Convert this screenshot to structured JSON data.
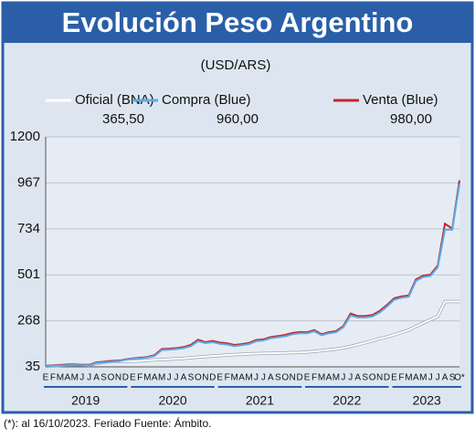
{
  "chart_data": {
    "type": "line",
    "title": "Evolución Peso Argentino",
    "subtitle": "(USD/ARS)",
    "footnote": "(*): al 16/10/2023. Feriado Fuente: Ámbito.",
    "categories": [
      "E",
      "F",
      "M",
      "A",
      "M",
      "J",
      "J",
      "A",
      "S",
      "O",
      "N",
      "D",
      "E",
      "F",
      "M",
      "A",
      "M",
      "J",
      "J",
      "A",
      "S",
      "O",
      "N",
      "D",
      "E",
      "F",
      "M",
      "A",
      "M",
      "J",
      "J",
      "A",
      "S",
      "O",
      "N",
      "D",
      "E",
      "F",
      "M",
      "A",
      "M",
      "J",
      "J",
      "A",
      "S",
      "O",
      "N",
      "D",
      "E",
      "F",
      "M",
      "A",
      "M",
      "J",
      "J",
      "A",
      "S",
      "O*"
    ],
    "years": [
      "2019",
      "2020",
      "2021",
      "2022",
      "2023"
    ],
    "ylim": [
      35,
      1200
    ],
    "yticks": [
      35,
      268,
      501,
      734,
      967,
      1200
    ],
    "grid": true,
    "series": [
      {
        "name": "Oficial (BNA)",
        "last_label": "365,50",
        "color": "#ffffff",
        "values": [
          38,
          39,
          42,
          45,
          46,
          45,
          43,
          52,
          59,
          63,
          63,
          63,
          63,
          65,
          68,
          70,
          72,
          74,
          76,
          78,
          81,
          84,
          87,
          90,
          92,
          95,
          97,
          99,
          101,
          102,
          103,
          104,
          105,
          106,
          107,
          108,
          110,
          113,
          117,
          121,
          125,
          131,
          138,
          148,
          157,
          167,
          178,
          186,
          197,
          209,
          221,
          240,
          257,
          274,
          290,
          365.5,
          365.5,
          365.5
        ]
      },
      {
        "name": "Compra (Blue)",
        "last_label": "960,00",
        "color": "#5aaae6",
        "values": [
          37,
          40,
          41,
          44,
          44,
          42,
          42,
          55,
          57,
          60,
          63,
          70,
          75,
          78,
          82,
          90,
          120,
          122,
          125,
          130,
          140,
          165,
          155,
          160,
          152,
          148,
          140,
          145,
          150,
          165,
          168,
          180,
          185,
          190,
          200,
          205,
          205,
          215,
          195,
          205,
          210,
          235,
          295,
          285,
          285,
          290,
          310,
          340,
          375,
          385,
          390,
          470,
          490,
          495,
          540,
          730,
          730,
          960
        ]
      },
      {
        "name": "Venta (Blue)",
        "last_label": "980,00",
        "color": "#c4262e",
        "values": [
          39,
          42,
          43,
          46,
          46,
          44,
          44,
          58,
          60,
          63,
          66,
          73,
          78,
          81,
          85,
          94,
          125,
          127,
          130,
          135,
          146,
          172,
          160,
          166,
          158,
          154,
          146,
          150,
          156,
          171,
          174,
          186,
          191,
          197,
          207,
          211,
          210,
          221,
          200,
          210,
          216,
          241,
          305,
          292,
          292,
          297,
          318,
          348,
          382,
          392,
          396,
          478,
          497,
          502,
          548,
          760,
          735,
          980
        ]
      }
    ]
  }
}
